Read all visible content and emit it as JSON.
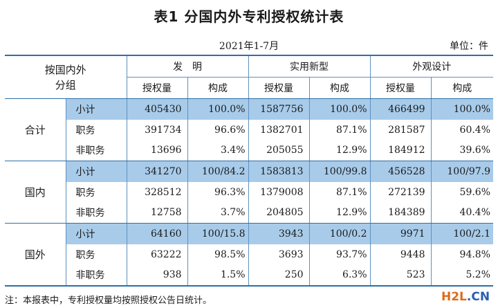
{
  "title": "表1  分国内外专利授权统计表",
  "period": "2021年1-7月",
  "unit": "单位：件",
  "header": {
    "corner": "按国内外\n分组",
    "groups": [
      "发　明",
      "实用新型",
      "外观设计"
    ],
    "sub": [
      "授权量",
      "构成",
      "授权量",
      "构成",
      "授权量",
      "构成"
    ]
  },
  "sections": [
    {
      "name": "合计",
      "rows": [
        {
          "label": "小计",
          "cells": [
            "405430",
            "100.0%",
            "1587756",
            "100.0%",
            "466499",
            "100.0%"
          ]
        },
        {
          "label": "职务",
          "cells": [
            "391734",
            "96.6%",
            "1382701",
            "87.1%",
            "281587",
            "60.4%"
          ]
        },
        {
          "label": "非职务",
          "cells": [
            "13696",
            "3.4%",
            "205055",
            "12.9%",
            "184912",
            "39.6%"
          ]
        }
      ]
    },
    {
      "name": "国内",
      "rows": [
        {
          "label": "小计",
          "cells": [
            "341270",
            "100/84.2",
            "1583813",
            "100/99.8",
            "456528",
            "100/97.9"
          ]
        },
        {
          "label": "职务",
          "cells": [
            "328512",
            "96.3%",
            "1379008",
            "87.1%",
            "272139",
            "59.6%"
          ]
        },
        {
          "label": "非职务",
          "cells": [
            "12758",
            "3.7%",
            "204805",
            "12.9%",
            "184389",
            "40.4%"
          ]
        }
      ]
    },
    {
      "name": "国外",
      "rows": [
        {
          "label": "小计",
          "cells": [
            "64160",
            "100/15.8",
            "3943",
            "100/0.2",
            "9971",
            "100/2.1"
          ]
        },
        {
          "label": "职务",
          "cells": [
            "63222",
            "98.5%",
            "3693",
            "93.7%",
            "9448",
            "94.8%"
          ]
        },
        {
          "label": "非职务",
          "cells": [
            "938",
            "1.5%",
            "250",
            "6.3%",
            "523",
            "5.2%"
          ]
        }
      ]
    }
  ],
  "note": "注：本报表中，专利授权量均按照授权公告日统计。",
  "watermark": {
    "part1": "H2L",
    "part2": ".CN"
  },
  "colors": {
    "highlight": "#a8cbea",
    "rule": "#2c6fa6"
  }
}
